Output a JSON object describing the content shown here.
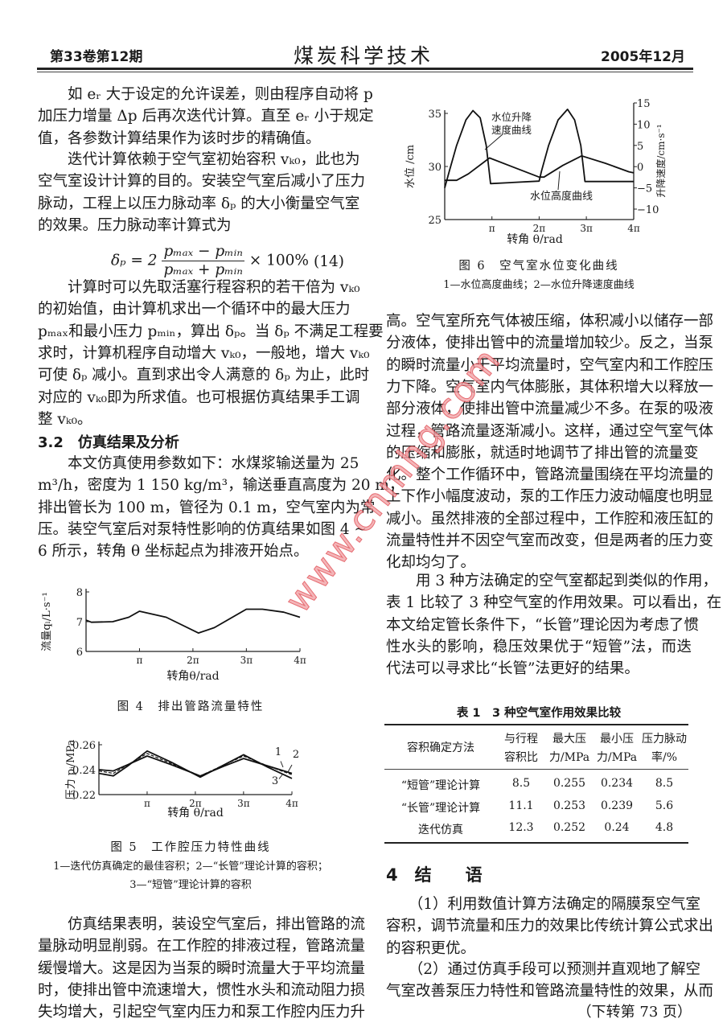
{
  "header": {
    "volume": "第33卷第12期",
    "journal": "煤炭科学技术",
    "date": "2005年12月"
  },
  "left_column": {
    "p1": [
      "　　如 eᵣ 大于设定的允许误差，则由程序自动将 p",
      "加压力增量 Δp 后再次迭代计算。直至 eᵣ 小于规定",
      "值，各参数计算结果作为该时步的精确值。"
    ],
    "p2": [
      "　　迭代计算依赖于空气室初始容积 vₖ₀，此也为",
      "空气室设计计算的目的。安装空气室后减小了压力",
      "脉动，工程上以压力脉动率 δₚ 的大小衡量空气室",
      "的效果。压力脉动率计算式为"
    ],
    "formula": {
      "lhs": "δₚ = 2",
      "num": "pₘₐₓ − pₘᵢₙ",
      "den": "pₘₐₓ + pₘᵢₙ",
      "rhs": "× 100%",
      "number": "(14)"
    },
    "p3": [
      "　　计算时可以先取活塞行程容积的若干倍为 vₖ₀",
      "的初始值，由计算机求出一个循环中的最大压力",
      "pₘₐₓ和最小压力 pₘᵢₙ，算出 δₚ。当 δₚ 不满足工程要",
      "求时，计算机程序自动增大 vₖ₀，一般地，增大 vₖ₀",
      "可使 δₚ 减小。直到求出令人满意的 δₚ 为止，此时",
      "对应的 vₖ₀即为所求值。也可根据仿真结果手工调",
      "整 vₖ₀。"
    ],
    "heading": "3.2　仿真结果及分析",
    "p4": [
      "　　本文仿真使用参数如下：水煤浆输送量为 25",
      "m³/h，密度为 1 150 kg/m³，输送垂直高度为 20 m，",
      "排出管长为 100 m，管径为 0.1 m，空气室内为常",
      "压。装空气室后对泵特性影响的仿真结果如图 4 ~",
      "6 所示，转角 θ 坐标起点为排液开始点。"
    ],
    "p5": [
      "　　仿真结果表明，装设空气室后，排出管路的流",
      "量脉动明显削弱。在工作腔的排液过程，管路流量",
      "缓慢增大。这是因为当泵的瞬时流量大于平均流量",
      "时，使排出管中流速增大，惯性水头和流动阻力损",
      "失均增大，引起空气室内压力和泵工作腔内压力升"
    ]
  },
  "right_column": {
    "p6": [
      "高。空气室所充气体被压缩，体积减小以储存一部",
      "分液体，使排出管中的流量增加较少。反之，当泵",
      "的瞬时流量小于平均流量时，空气室内和工作腔压",
      "力下降。空气室内气体膨胀，其体积增大以释放一",
      "部分液体，使排出管中流量减少不多。在泵的吸液",
      "过程，管路流量逐渐减小。这样，通过空气室气体",
      "的压缩和膨胀，就适时地调节了排出管的流量变",
      "化。整个工作循环中，管路流量围绕在平均流量的",
      "上下作小幅度波动，泵的工作压力波动幅度也明显",
      "减小。虽然排液的全部过程中，工作腔和液压缸的",
      "流量特性并不因空气室而改变，但是两者的压力变",
      "化却均匀了。"
    ],
    "p7": [
      "　　用 3 种方法确定的空气室都起到类似的作用，",
      "表 1 比较了 3 种空气室的作用效果。可以看出，在",
      "本文给定管长条件下，“长管”理论因为考虑了惯",
      "性水头的影响，稳压效果优于“短管”法，而迭",
      "代法可以寻求比“长管”法更好的结果。"
    ],
    "section4": "4　结　　语",
    "c1": [
      "　　（1）利用数值计算方法确定的隔膜泵空气室",
      "容积，调节流量和压力的效果比传统计算公式求出",
      "的容积更优。"
    ],
    "c2": [
      "　　（2）通过仿真手段可以预测并直观地了解空",
      "气室改善泵压力特性和管路流量特性的效果，从而"
    ],
    "continued": "（下转第 73 页）"
  },
  "table1": {
    "title": "表 1　3 种空气室作用效果比较",
    "headers": [
      [
        "容积确定方法",
        ""
      ],
      [
        "与行程",
        "容积比"
      ],
      [
        "最大压",
        "力/MPa"
      ],
      [
        "最小压",
        "力/MPa"
      ],
      [
        "压力脉动",
        "率/%"
      ]
    ],
    "rows": [
      [
        "“短管”理论计算",
        "8.5",
        "0.255",
        "0.234",
        "8.5"
      ],
      [
        "“长管”理论计算",
        "11.1",
        "0.253",
        "0.239",
        "5.6"
      ],
      [
        "迭代仿真",
        "12.3",
        "0.252",
        "0.24",
        "4.8"
      ]
    ]
  },
  "watermark": "www.cnmhg.com",
  "chart_data": [
    {
      "id": "fig4",
      "type": "line",
      "title": "图 4　排出管路流量特性",
      "xlabel": "转角θ/rad",
      "ylabel": "流量qₗ/L·s⁻¹",
      "xlim": [
        0,
        12.57
      ],
      "ylim": [
        6,
        8
      ],
      "xticks": [
        3.14,
        6.28,
        9.42,
        12.57
      ],
      "xtick_labels": [
        "π",
        "2π",
        "3π",
        "4π"
      ],
      "yticks": [
        6,
        7,
        8
      ],
      "ytick_labels": [
        "6",
        "7",
        "8"
      ],
      "grid": false,
      "series": [
        {
          "x": [
            0,
            0.31,
            1.57,
            2.51,
            3.14,
            4.71,
            6.6,
            7.54,
            9.42,
            10.37,
            11.62,
            12.57
          ],
          "y": [
            7.05,
            6.98,
            7.0,
            7.15,
            7.35,
            7.15,
            6.62,
            6.8,
            7.42,
            7.42,
            7.32,
            7.15
          ],
          "style": "solid"
        }
      ]
    },
    {
      "id": "fig5",
      "type": "line",
      "title": "图 5　工作腔压力特性曲线",
      "subtitle": [
        "1—迭代仿真确定的最佳容积；2—“长管”理论计算的容积；",
        "3—“短管”理论计算的容积"
      ],
      "xlabel": "转角 θ/rad",
      "ylabel": "压力 pᵢ/MPa",
      "xlim": [
        0,
        12.57
      ],
      "ylim": [
        0.22,
        0.26
      ],
      "xticks": [
        3.14,
        6.28,
        9.42,
        12.57
      ],
      "xtick_labels": [
        "π",
        "2π",
        "3π",
        "4π"
      ],
      "yticks": [
        0.22,
        0.24,
        0.26
      ],
      "ytick_labels": [
        "0.22",
        "0.24",
        "0.26"
      ],
      "grid": false,
      "series": [
        {
          "name": "1",
          "x": [
            0,
            0.94,
            1.88,
            3.14,
            4.71,
            6.6,
            8.17,
            9.42,
            11.0,
            12.57
          ],
          "y": [
            0.24,
            0.239,
            0.244,
            0.251,
            0.244,
            0.235,
            0.243,
            0.249,
            0.243,
            0.237
          ],
          "style": "solid"
        },
        {
          "name": "2",
          "x": [
            0,
            0.94,
            1.88,
            3.14,
            4.71,
            6.6,
            8.17,
            9.42,
            11.0,
            12.57
          ],
          "y": [
            0.239,
            0.237,
            0.244,
            0.253,
            0.245,
            0.235,
            0.244,
            0.251,
            0.243,
            0.236
          ],
          "style": "dashed"
        },
        {
          "name": "3",
          "x": [
            0,
            0.94,
            1.88,
            3.14,
            4.71,
            6.6,
            8.17,
            9.42,
            11.0,
            12.57
          ],
          "y": [
            0.237,
            0.235,
            0.243,
            0.255,
            0.246,
            0.234,
            0.244,
            0.252,
            0.242,
            0.233
          ],
          "style": "solid"
        }
      ]
    },
    {
      "id": "fig6",
      "type": "line",
      "title": "图 6　空气室水位变化曲线",
      "subtitle": [
        "1—水位高度曲线；2—水位升降速度曲线"
      ],
      "xlabel": "转角 θ/rad",
      "ylabel": "水位 /cm",
      "y2label": "升降速度/cm·s⁻¹",
      "xlim": [
        0,
        12.57
      ],
      "ylim": [
        25,
        35
      ],
      "y2lim": [
        -12.5,
        15
      ],
      "xticks": [
        3.14,
        6.28,
        9.42,
        12.57
      ],
      "xtick_labels": [
        "π",
        "2π",
        "3π",
        "4π"
      ],
      "yticks": [
        25,
        30,
        35
      ],
      "ytick_labels": [
        "25",
        "30",
        "35"
      ],
      "y2ticks": [
        15,
        10,
        5,
        0,
        -5,
        -10
      ],
      "y2tick_labels": [
        "15",
        "10",
        "5",
        "0",
        "−5",
        "−10"
      ],
      "grid": false,
      "series": [
        {
          "name": "水位升降速度曲线",
          "axis": "right",
          "x": [
            0,
            0.31,
            0.79,
            1.41,
            1.88,
            2.36,
            2.76,
            3.05,
            6.28,
            6.44,
            6.91,
            7.54,
            8.17,
            8.64,
            9.05,
            9.33,
            12.57
          ],
          "y": [
            -5,
            -1,
            5,
            11,
            13.2,
            11.5,
            5,
            -4,
            -3.4,
            -1,
            5,
            11,
            13.5,
            11,
            5,
            -3.5,
            -3.5
          ],
          "style": "solid"
        },
        {
          "name": "水位高度曲线",
          "axis": "left",
          "x": [
            0,
            0.79,
            1.57,
            2.98,
            6.28,
            6.6,
            7.85,
            9.11,
            10.68,
            12.25,
            12.57
          ],
          "y": [
            28.7,
            28.7,
            29.3,
            30.8,
            29.0,
            29.0,
            30.1,
            31.0,
            30.3,
            29.5,
            29.4
          ],
          "style": "solid"
        }
      ]
    }
  ]
}
